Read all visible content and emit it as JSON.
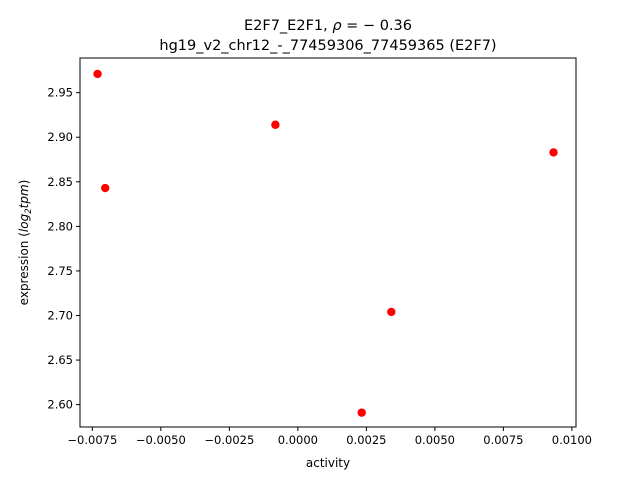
{
  "chart_data": {
    "type": "scatter",
    "title_line1_prefix": "E2F7_E2F1, ",
    "title_line1_rho": "ρ",
    "title_line1_value": " = − 0.36",
    "title_line2": "hg19_v2_chr12_-_77459306_77459365 (E2F7)",
    "xlabel": "activity",
    "ylabel_prefix": "expression (",
    "ylabel_log": "log",
    "ylabel_sub": "2",
    "ylabel_tpm": "tpm",
    "ylabel_suffix": ")",
    "xlim": [
      -0.00795,
      0.01015
    ],
    "ylim": [
      2.5749,
      2.9889
    ],
    "xticks": [
      -0.0075,
      -0.005,
      -0.0025,
      0.0,
      0.0025,
      0.005,
      0.0075,
      0.01
    ],
    "xtick_labels": [
      "−0.0075",
      "−0.0050",
      "−0.0025",
      "0.0000",
      "0.0025",
      "0.0050",
      "0.0075",
      "0.0100"
    ],
    "yticks": [
      2.6,
      2.65,
      2.7,
      2.75,
      2.8,
      2.85,
      2.9,
      2.95
    ],
    "ytick_labels": [
      "2.60",
      "2.65",
      "2.70",
      "2.75",
      "2.80",
      "2.85",
      "2.90",
      "2.95"
    ],
    "points": [
      {
        "x": -0.00731,
        "y": 2.971
      },
      {
        "x": -0.00703,
        "y": 2.843
      },
      {
        "x": -0.00082,
        "y": 2.914
      },
      {
        "x": 0.00233,
        "y": 2.591
      },
      {
        "x": 0.00341,
        "y": 2.704
      },
      {
        "x": 0.00933,
        "y": 2.883
      }
    ],
    "marker_color": "#ff0000",
    "grid": false
  }
}
